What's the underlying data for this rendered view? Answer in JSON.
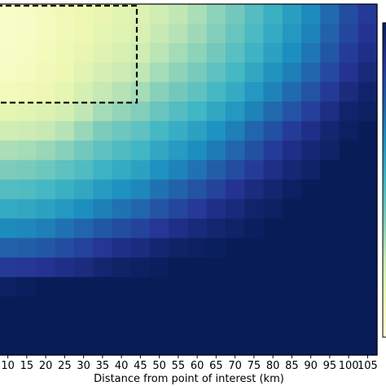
{
  "chart_data": {
    "type": "heatmap",
    "xlabel": "Distance from point of interest (km)",
    "ylabel": "",
    "title": "",
    "x_tick_labels": [
      "10",
      "15",
      "20",
      "25",
      "30",
      "35",
      "40",
      "45",
      "50",
      "55",
      "60",
      "65",
      "70",
      "75",
      "80",
      "85",
      "90",
      "95",
      "100",
      "105"
    ],
    "colormap": "YlGnBu",
    "colormap_stops": [
      "#ffffd9",
      "#edf8b1",
      "#c7e9b4",
      "#7fcdbb",
      "#41b6c4",
      "#1d91c0",
      "#225ea8",
      "#253494",
      "#081d58"
    ],
    "value_range": [
      0,
      1
    ],
    "grid": false,
    "colorbar": "right (partially visible)",
    "annotation": "dashed black rectangle spanning x 10 to 45 in the top rows",
    "cells": [
      [
        0.05,
        0.06,
        0.08,
        0.1,
        0.12,
        0.14,
        0.16,
        0.18,
        0.22,
        0.26,
        0.3,
        0.35,
        0.4,
        0.46,
        0.52,
        0.58,
        0.64,
        0.72,
        0.8,
        0.86
      ],
      [
        0.05,
        0.06,
        0.08,
        0.1,
        0.12,
        0.15,
        0.17,
        0.19,
        0.24,
        0.28,
        0.32,
        0.37,
        0.42,
        0.48,
        0.54,
        0.6,
        0.66,
        0.74,
        0.82,
        0.88
      ],
      [
        0.06,
        0.07,
        0.09,
        0.11,
        0.14,
        0.17,
        0.19,
        0.22,
        0.27,
        0.31,
        0.35,
        0.4,
        0.45,
        0.51,
        0.57,
        0.63,
        0.69,
        0.77,
        0.85,
        0.9
      ],
      [
        0.07,
        0.08,
        0.1,
        0.12,
        0.16,
        0.2,
        0.23,
        0.26,
        0.31,
        0.35,
        0.39,
        0.44,
        0.49,
        0.55,
        0.61,
        0.67,
        0.73,
        0.81,
        0.88,
        0.93
      ],
      [
        0.09,
        0.1,
        0.12,
        0.15,
        0.2,
        0.25,
        0.28,
        0.31,
        0.36,
        0.4,
        0.44,
        0.49,
        0.54,
        0.6,
        0.66,
        0.72,
        0.78,
        0.86,
        0.92,
        0.96
      ],
      [
        0.15,
        0.16,
        0.18,
        0.21,
        0.26,
        0.31,
        0.34,
        0.37,
        0.42,
        0.46,
        0.5,
        0.55,
        0.6,
        0.66,
        0.72,
        0.78,
        0.84,
        0.91,
        0.96,
        0.98
      ],
      [
        0.22,
        0.23,
        0.25,
        0.28,
        0.33,
        0.38,
        0.41,
        0.44,
        0.49,
        0.53,
        0.57,
        0.62,
        0.67,
        0.73,
        0.79,
        0.85,
        0.9,
        0.95,
        0.98,
        1.0
      ],
      [
        0.3,
        0.31,
        0.33,
        0.36,
        0.4,
        0.44,
        0.47,
        0.5,
        0.55,
        0.59,
        0.63,
        0.68,
        0.73,
        0.79,
        0.85,
        0.9,
        0.94,
        0.97,
        1.0,
        1.0
      ],
      [
        0.38,
        0.39,
        0.41,
        0.44,
        0.47,
        0.51,
        0.54,
        0.57,
        0.62,
        0.66,
        0.7,
        0.75,
        0.8,
        0.85,
        0.9,
        0.94,
        0.97,
        1.0,
        1.0,
        1.0
      ],
      [
        0.46,
        0.47,
        0.49,
        0.52,
        0.55,
        0.59,
        0.62,
        0.65,
        0.7,
        0.74,
        0.78,
        0.83,
        0.88,
        0.92,
        0.95,
        0.98,
        1.0,
        1.0,
        1.0,
        1.0
      ],
      [
        0.54,
        0.55,
        0.57,
        0.6,
        0.63,
        0.67,
        0.7,
        0.73,
        0.78,
        0.82,
        0.86,
        0.9,
        0.93,
        0.96,
        0.98,
        1.0,
        1.0,
        1.0,
        1.0,
        1.0
      ],
      [
        0.64,
        0.65,
        0.67,
        0.7,
        0.73,
        0.77,
        0.8,
        0.83,
        0.87,
        0.9,
        0.93,
        0.95,
        0.97,
        0.99,
        1.0,
        1.0,
        1.0,
        1.0,
        1.0,
        1.0
      ],
      [
        0.74,
        0.75,
        0.77,
        0.8,
        0.83,
        0.87,
        0.9,
        0.92,
        0.95,
        0.97,
        0.98,
        0.99,
        1.0,
        1.0,
        1.0,
        1.0,
        1.0,
        1.0,
        1.0,
        1.0
      ],
      [
        0.86,
        0.87,
        0.88,
        0.9,
        0.92,
        0.95,
        0.97,
        0.98,
        0.99,
        1.0,
        1.0,
        1.0,
        1.0,
        1.0,
        1.0,
        1.0,
        1.0,
        1.0,
        1.0,
        1.0
      ],
      [
        0.98,
        0.99,
        1.0,
        1.0,
        1.0,
        1.0,
        1.0,
        1.0,
        1.0,
        1.0,
        1.0,
        1.0,
        1.0,
        1.0,
        1.0,
        1.0,
        1.0,
        1.0,
        1.0,
        1.0
      ],
      [
        1.0,
        1.0,
        1.0,
        1.0,
        1.0,
        1.0,
        1.0,
        1.0,
        1.0,
        1.0,
        1.0,
        1.0,
        1.0,
        1.0,
        1.0,
        1.0,
        1.0,
        1.0,
        1.0,
        1.0
      ],
      [
        1.0,
        1.0,
        1.0,
        1.0,
        1.0,
        1.0,
        1.0,
        1.0,
        1.0,
        1.0,
        1.0,
        1.0,
        1.0,
        1.0,
        1.0,
        1.0,
        1.0,
        1.0,
        1.0,
        1.0
      ],
      [
        1.0,
        1.0,
        1.0,
        1.0,
        1.0,
        1.0,
        1.0,
        1.0,
        1.0,
        1.0,
        1.0,
        1.0,
        1.0,
        1.0,
        1.0,
        1.0,
        1.0,
        1.0,
        1.0,
        1.0
      ]
    ]
  }
}
